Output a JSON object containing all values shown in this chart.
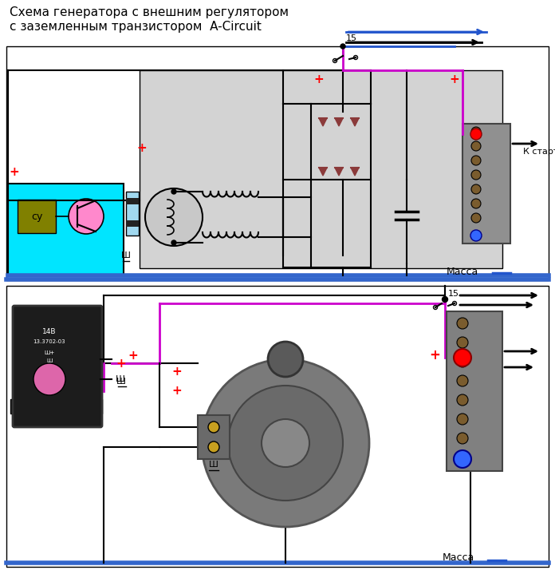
{
  "title_line1": "Схема генератора с внешним регулятором",
  "title_line2": "с заземленным транзистором  A-Circuit",
  "bg_color": "#ffffff",
  "cyan_bg": "#00e5ff",
  "gray_bg": "#d0d0d0",
  "label_massa": "Масса",
  "label_starter": "К стартеру",
  "label_15": "15",
  "label_sh": "Ш",
  "label_su": "су",
  "magenta": "#cc00cc",
  "blue_line": "#2255cc",
  "red": "#ff0000",
  "dark_brown": "#8B3A3A",
  "black": "#000000",
  "gray_connector": "#909090",
  "dark_gray": "#555555"
}
